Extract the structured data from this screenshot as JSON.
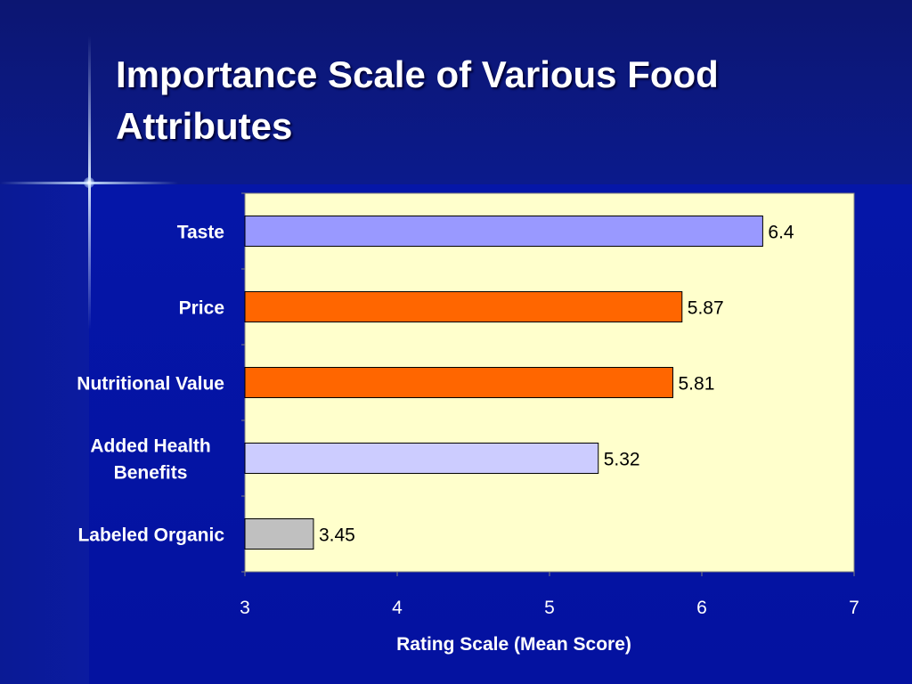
{
  "slide": {
    "title": "Importance Scale of Various Food Attributes"
  },
  "colors": {
    "plot_background": "#ffffcc",
    "text": "#ffffff"
  },
  "chart_data": {
    "type": "bar",
    "orientation": "horizontal",
    "title": "Importance Scale of Various Food Attributes",
    "xlabel": "Rating Scale (Mean Score)",
    "ylabel": "",
    "xlim": [
      3,
      7
    ],
    "xticks": [
      3,
      4,
      5,
      6,
      7
    ],
    "grid": false,
    "legend": "none",
    "categories": [
      [
        "Taste"
      ],
      [
        "Price"
      ],
      [
        "Nutritional Value"
      ],
      [
        "Added Health",
        "Benefits"
      ],
      [
        "Labeled Organic"
      ]
    ],
    "values": [
      6.4,
      5.87,
      5.81,
      5.32,
      3.45
    ],
    "data_labels": [
      "6.4",
      "5.87",
      "5.81",
      "5.32",
      "3.45"
    ],
    "bar_colors": [
      "#9999ff",
      "#ff6600",
      "#ff6600",
      "#ccccff",
      "#c0c0c0"
    ]
  }
}
